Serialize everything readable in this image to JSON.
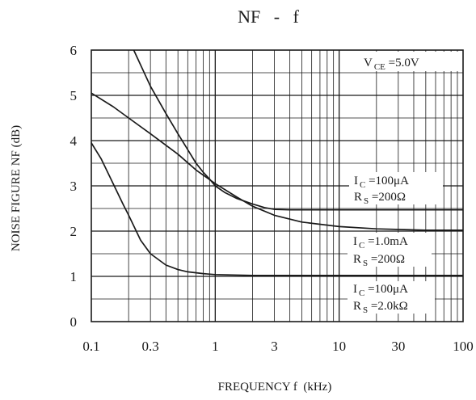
{
  "chart_data": {
    "type": "line",
    "title": "NF   -   f",
    "xlabel": "FREQUENCY f  (kHz)",
    "ylabel": "NOISE FIGURE NF (dB)",
    "x_scale": "log",
    "xlim": [
      0.1,
      100
    ],
    "ylim": [
      0,
      6
    ],
    "x_ticks": [
      0.1,
      0.3,
      1,
      3,
      10,
      30,
      100
    ],
    "x_tick_labels": [
      "0.1",
      "0.3",
      "1",
      "3",
      "10",
      "30",
      "100"
    ],
    "y_ticks": [
      0,
      1,
      2,
      3,
      4,
      5,
      6
    ],
    "y_tick_labels": [
      "0",
      "1",
      "2",
      "3",
      "4",
      "5",
      "6"
    ],
    "grid": true,
    "condition": {
      "symbol": "V",
      "sub": "CE",
      "value": " =5.0V"
    },
    "series": [
      {
        "label_lines": [
          {
            "symbol": "I",
            "sub": "C",
            "value": " =100μA"
          },
          {
            "symbol": "R",
            "sub": "S",
            "value": " =200Ω"
          }
        ],
        "x": [
          0.22,
          0.3,
          0.4,
          0.5,
          0.6,
          0.7,
          0.8,
          0.9,
          1.0,
          1.2,
          1.5,
          2.0,
          2.5,
          3.0,
          4.0,
          6.0,
          10,
          30,
          100
        ],
        "y": [
          6.0,
          5.2,
          4.6,
          4.15,
          3.8,
          3.5,
          3.3,
          3.15,
          3.0,
          2.85,
          2.72,
          2.6,
          2.52,
          2.48,
          2.47,
          2.47,
          2.47,
          2.47,
          2.47
        ]
      },
      {
        "label_lines": [
          {
            "symbol": "I",
            "sub": "C",
            "value": " =1.0mA"
          },
          {
            "symbol": "R",
            "sub": "S",
            "value": " =200Ω"
          }
        ],
        "x": [
          0.1,
          0.15,
          0.2,
          0.3,
          0.5,
          0.7,
          1.0,
          1.5,
          2.0,
          3.0,
          5.0,
          10,
          20,
          50,
          100
        ],
        "y": [
          5.05,
          4.75,
          4.5,
          4.15,
          3.7,
          3.35,
          3.05,
          2.75,
          2.55,
          2.35,
          2.2,
          2.1,
          2.05,
          2.02,
          2.02
        ]
      },
      {
        "label_lines": [
          {
            "symbol": "I",
            "sub": "C",
            "value": " =100μA"
          },
          {
            "symbol": "R",
            "sub": "S",
            "value": " =2.0kΩ"
          }
        ],
        "x": [
          0.1,
          0.12,
          0.15,
          0.18,
          0.2,
          0.25,
          0.3,
          0.4,
          0.5,
          0.6,
          0.8,
          1.0,
          2.0,
          10,
          100
        ],
        "y": [
          3.95,
          3.6,
          3.05,
          2.6,
          2.35,
          1.8,
          1.5,
          1.25,
          1.15,
          1.1,
          1.06,
          1.04,
          1.02,
          1.02,
          1.02
        ]
      }
    ]
  }
}
